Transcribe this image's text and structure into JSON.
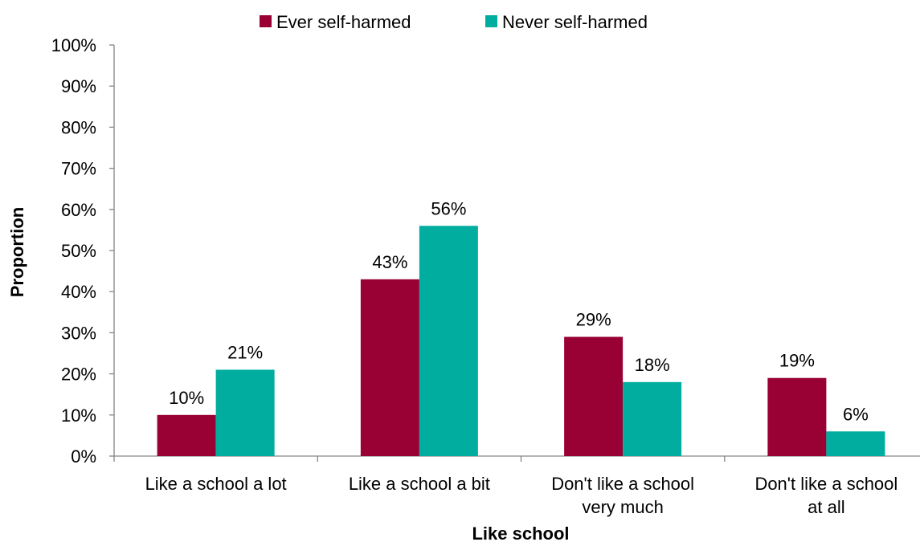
{
  "chart_data": {
    "type": "bar",
    "title": "",
    "xlabel": "Like school",
    "ylabel": "Proportion",
    "ylim": [
      0,
      100
    ],
    "y_ticks": [
      "0%",
      "10%",
      "20%",
      "30%",
      "40%",
      "50%",
      "60%",
      "70%",
      "80%",
      "90%",
      "100%"
    ],
    "categories": [
      [
        "Like a school a lot"
      ],
      [
        "Like a school a bit"
      ],
      [
        "Don't like a school",
        "very much"
      ],
      [
        "Don't like a school",
        "at all"
      ]
    ],
    "series": [
      {
        "name": "Ever self-harmed",
        "color": "#990033",
        "values": [
          10,
          43,
          29,
          19
        ],
        "labels": [
          "10%",
          "43%",
          "29%",
          "19%"
        ]
      },
      {
        "name": "Never self-harmed",
        "color": "#00ad9f",
        "values": [
          21,
          56,
          18,
          6
        ],
        "labels": [
          "21%",
          "56%",
          "18%",
          "6%"
        ]
      }
    ],
    "legend_position": "top",
    "grid": false
  }
}
